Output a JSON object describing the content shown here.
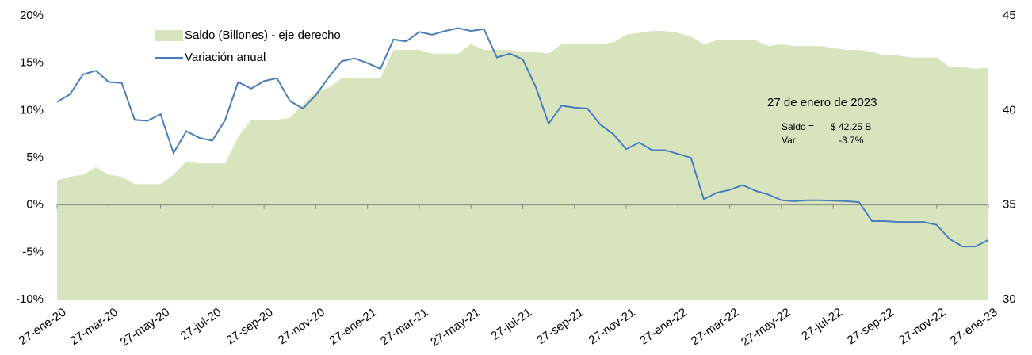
{
  "chart_data": {
    "type": "area-line",
    "categories": [
      "27-ene-20",
      null,
      null,
      null,
      "27-mar-20",
      null,
      null,
      null,
      "27-may-20",
      null,
      null,
      null,
      "27-jul-20",
      null,
      null,
      null,
      "27-sep-20",
      null,
      null,
      null,
      "27-nov-20",
      null,
      null,
      null,
      "27-ene-21",
      null,
      null,
      null,
      "27-mar-21",
      null,
      null,
      null,
      "27-may-21",
      null,
      null,
      null,
      "27-jul-21",
      null,
      null,
      null,
      "27-sep-21",
      null,
      null,
      null,
      "27-nov-21",
      null,
      null,
      null,
      "27-ene-22",
      null,
      null,
      null,
      "27-mar-22",
      null,
      null,
      null,
      "27-may-22",
      null,
      null,
      null,
      "27-jul-22",
      null,
      null,
      null,
      "27-sep-22",
      null,
      null,
      null,
      "27-nov-22",
      null,
      null,
      null,
      "27-ene-23"
    ],
    "series": [
      {
        "name": "Saldo (Billones) - eje derecho",
        "color": "#d7e4bd",
        "axis": "y2",
        "kind": "area",
        "values": [
          36.3,
          36.5,
          36.6,
          37,
          36.6,
          36.5,
          36.1,
          36.1,
          36.1,
          36.6,
          37.3,
          37.2,
          37.2,
          37.2,
          38.6,
          39.5,
          39.5,
          39.5,
          39.6,
          40.3,
          41,
          41.2,
          41.7,
          41.7,
          41.7,
          41.7,
          43.2,
          43.2,
          43.2,
          43,
          43,
          43,
          43.5,
          43.2,
          43.2,
          43.2,
          43.1,
          43.1,
          43,
          43.5,
          43.5,
          43.5,
          43.5,
          43.6,
          44,
          44.1,
          44.2,
          44.2,
          44.1,
          43.9,
          43.5,
          43.7,
          43.7,
          43.7,
          43.7,
          43.4,
          43.5,
          43.4,
          43.4,
          43.4,
          43.3,
          43.2,
          43.2,
          43.1,
          42.9,
          42.9,
          42.8,
          42.8,
          42.8,
          42.3,
          42.3,
          42.2,
          42.25
        ]
      },
      {
        "name": "Variación anual",
        "color": "#4a7ebb",
        "kind": "line",
        "values": [
          10.9,
          11.7,
          13.8,
          14.2,
          13,
          12.9,
          9,
          8.9,
          9.6,
          5.5,
          7.8,
          7.1,
          6.8,
          9,
          13,
          12.3,
          13.1,
          13.4,
          11,
          10.2,
          11.6,
          13.5,
          15.2,
          15.5,
          15,
          14.4,
          17.5,
          17.3,
          18.3,
          18,
          18.4,
          18.7,
          18.4,
          18.6,
          15.6,
          16,
          15.4,
          12.5,
          8.6,
          10.5,
          10.3,
          10.2,
          8.5,
          7.5,
          5.9,
          6.6,
          5.8,
          5.8,
          5.4,
          5,
          0.6,
          1.3,
          1.6,
          2.1,
          1.5,
          1.1,
          0.5,
          0.4,
          0.5,
          0.5,
          0.45,
          0.4,
          0.3,
          -1.7,
          -1.7,
          -1.8,
          -1.8,
          -1.8,
          -2.1,
          -3.6,
          -4.4,
          -4.4,
          -3.7
        ]
      }
    ],
    "ylim": [
      -10,
      20
    ],
    "yticks": [
      {
        "value": -10,
        "label": "-10%"
      },
      {
        "value": -5,
        "label": "-5%"
      },
      {
        "value": 0,
        "label": "0%"
      },
      {
        "value": 5,
        "label": "5%"
      },
      {
        "value": 10,
        "label": "10%"
      },
      {
        "value": 15,
        "label": "15%"
      },
      {
        "value": 20,
        "label": "20%"
      }
    ],
    "y2lim": [
      30,
      45
    ],
    "y2ticks": [
      30,
      35,
      40,
      45
    ],
    "legend": "upper left",
    "annotation": {
      "title": "27 de enero de 2023",
      "lines": [
        [
          "Saldo =",
          "$ 42.25 B"
        ],
        [
          "Var:",
          "-3.7%"
        ]
      ]
    }
  }
}
